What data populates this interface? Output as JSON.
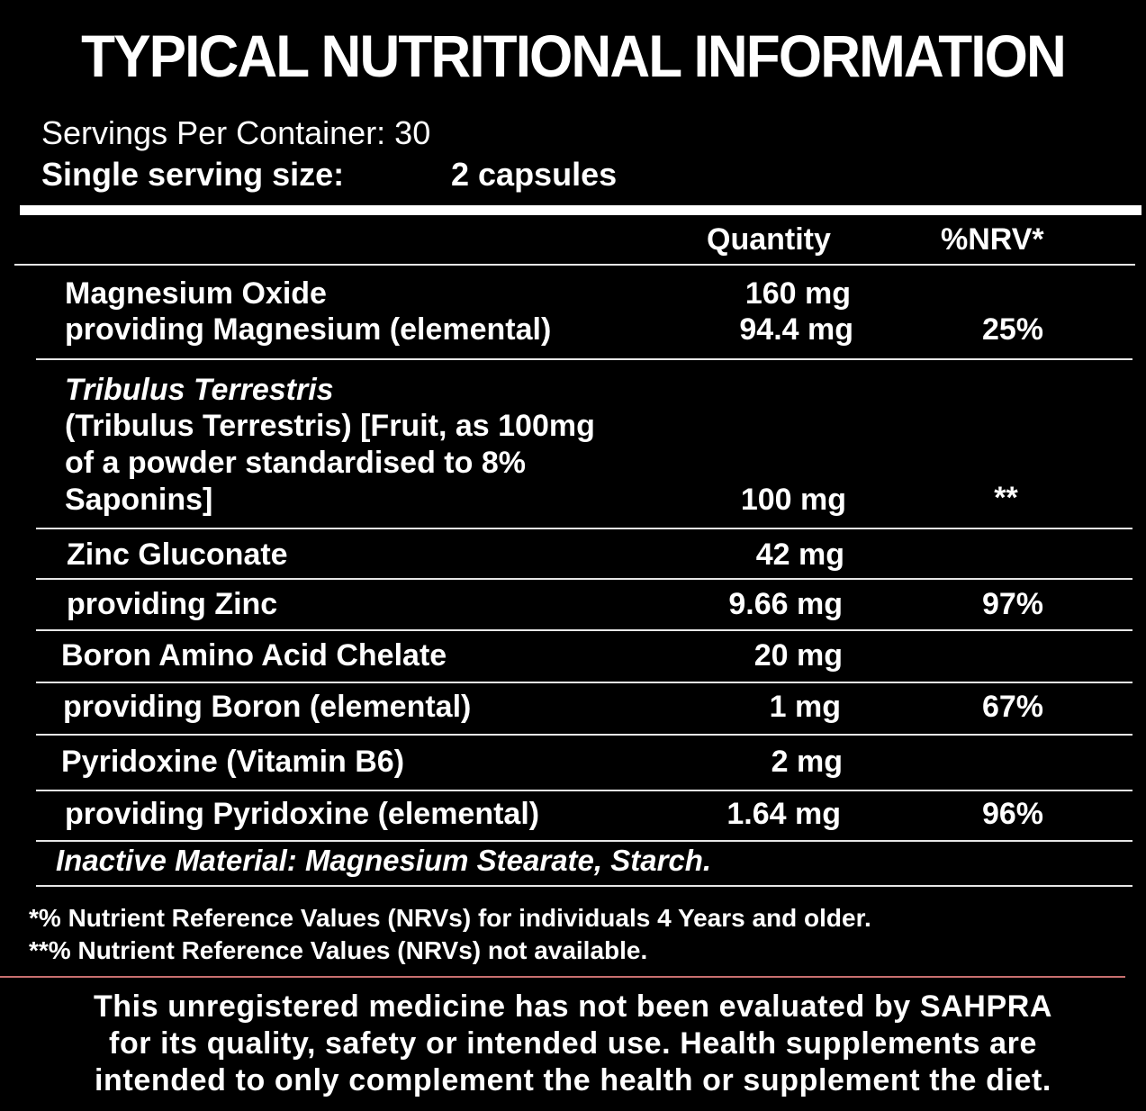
{
  "title": "TYPICAL NUTRITIONAL INFORMATION",
  "servings": {
    "label": "Servings Per Container:  30",
    "size_label": "Single serving size:",
    "size_value": "2 capsules"
  },
  "header": {
    "quantity": "Quantity",
    "nrv": "%NRV*"
  },
  "rows": {
    "mg_oxide": {
      "name": "Magnesium Oxide",
      "qty": "160 mg"
    },
    "mg": {
      "name": "providing Magnesium (elemental)",
      "qty": "94.4 mg",
      "nrv": "25%"
    },
    "tribulus": {
      "line1": "Tribulus Terrestris",
      "line2": "(Tribulus Terrestris) [Fruit, as 100mg",
      "line3": "of a powder standardised to 8%",
      "line4": "Saponins]",
      "qty": "100 mg",
      "nrv": "**"
    },
    "zinc_gluconate": {
      "name": "Zinc Gluconate",
      "qty": "42 mg"
    },
    "zinc": {
      "name": "providing Zinc",
      "qty": "9.66 mg",
      "nrv": "97%"
    },
    "boron_chelate": {
      "name": "Boron Amino Acid Chelate",
      "qty": "20 mg"
    },
    "boron": {
      "name": "providing Boron (elemental)",
      "qty": "1 mg",
      "nrv": "67%"
    },
    "pyridoxine": {
      "name": "Pyridoxine (Vitamin B6)",
      "qty": "2 mg"
    },
    "pyridoxine_el": {
      "name": "providing Pyridoxine (elemental)",
      "qty": "1.64 mg",
      "nrv": "96%"
    }
  },
  "inactive": "Inactive Material: Magnesium Stearate, Starch.",
  "footnotes": {
    "nrv": "*% Nutrient Reference Values (NRVs) for individuals 4 Years and older.",
    "na": "**% Nutrient Reference Values (NRVs) not available."
  },
  "disclaimer": {
    "line1": "This unregistered medicine has not been evaluated by SAHPRA",
    "line2": "for its quality, safety or intended use. Health supplements are",
    "line3": "intended to only complement the health or supplement the diet."
  }
}
